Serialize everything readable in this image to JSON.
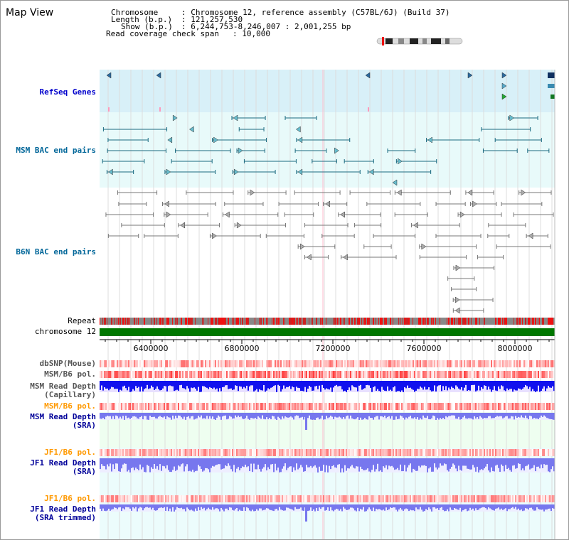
{
  "title": "Map View",
  "header": {
    "chromosome_label": "Chromosome",
    "chromosome_value": ": Chromosome 12, reference assembly (C57BL/6J) (Build 37)",
    "length_label": "Length (b.p.)",
    "length_value": ": 121,257,530",
    "show_label": "Show (b.p.)",
    "show_value": ": 6,244,753-8,246,007 : 2,001,255 bp",
    "coverage_label": "Read coverage check span",
    "coverage_value": ": 10,000"
  },
  "tracks": {
    "refseq": "RefSeq Genes",
    "msm_bac": "MSM BAC end pairs",
    "b6n_bac": "B6N BAC end pairs",
    "repeat": "Repeat",
    "chromosome": "chromosome 12",
    "dbsnp": "dbSNP(Mouse)",
    "msm_pol": "MSM/B6 pol.",
    "msm_depth_cap": "MSM Read Depth\n(Capillary)",
    "msm_pol_2": "MSM/B6 pol.",
    "msm_depth_sra": "MSM Read Depth\n(SRA)",
    "jf1_pol": "JF1/B6 pol.",
    "jf1_depth_sra": "JF1 Read Depth\n(SRA)",
    "jf1_pol_2": "JF1/B6 pol.",
    "jf1_depth_trim": "JF1 Read Depth\n(SRA trimmed)"
  },
  "axis": {
    "ticks": [
      "6400000",
      "6800000",
      "7200000",
      "7600000",
      "8000000"
    ]
  },
  "colors": {
    "refseq_label": "#0000cc",
    "msm_label": "#006699",
    "orange_label": "#ff9900",
    "blue_label": "#000099",
    "chromosome_bar": "#007700"
  }
}
